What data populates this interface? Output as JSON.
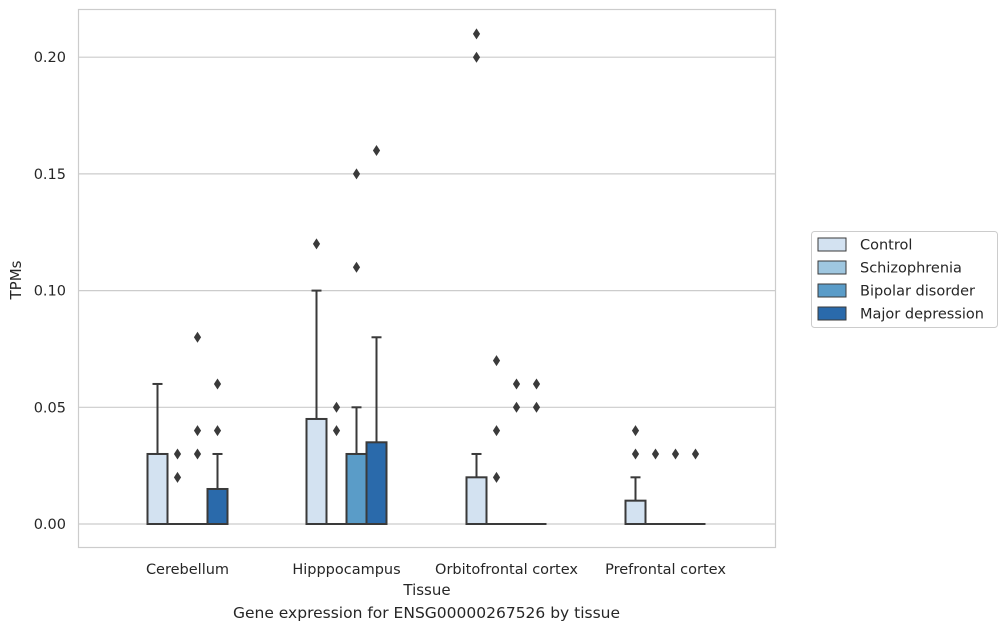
{
  "caption": "Gene expression for ENSG00000267526 by tissue",
  "chart_data": {
    "type": "box",
    "xlabel": "Tissue",
    "ylabel": "TPMs",
    "ylim": [
      -0.01,
      0.221
    ],
    "yticks": [
      0.0,
      0.05,
      0.1,
      0.15,
      0.2
    ],
    "ytick_labels": [
      "0.00",
      "0.05",
      "0.10",
      "0.15",
      "0.20"
    ],
    "grid": "horizontal",
    "legend_position": "right",
    "categories": [
      "Cerebellum",
      "Hipppocampus",
      "Orbitofrontal cortex",
      "Prefrontal cortex"
    ],
    "series": [
      {
        "name": "Control",
        "color": "#d3e2f1",
        "boxes": [
          {
            "q1": 0.0,
            "median": 0.0,
            "q3": 0.03,
            "whisker_low": 0.0,
            "whisker_high": 0.06,
            "outliers": []
          },
          {
            "q1": 0.0,
            "median": 0.0,
            "q3": 0.045,
            "whisker_low": 0.0,
            "whisker_high": 0.1,
            "outliers": [
              0.12
            ]
          },
          {
            "q1": 0.0,
            "median": 0.0,
            "q3": 0.02,
            "whisker_low": 0.0,
            "whisker_high": 0.03,
            "outliers": [
              0.2,
              0.21
            ]
          },
          {
            "q1": 0.0,
            "median": 0.0,
            "q3": 0.01,
            "whisker_low": 0.0,
            "whisker_high": 0.02,
            "outliers": [
              0.03,
              0.04
            ]
          }
        ]
      },
      {
        "name": "Schizophrenia",
        "color": "#9fc7e0",
        "boxes": [
          {
            "q1": 0.0,
            "median": 0.0,
            "q3": 0.0,
            "whisker_low": 0.0,
            "whisker_high": 0.0,
            "outliers": [
              0.02,
              0.03
            ]
          },
          {
            "q1": 0.0,
            "median": 0.0,
            "q3": 0.0,
            "whisker_low": 0.0,
            "whisker_high": 0.0,
            "outliers": [
              0.04,
              0.05
            ]
          },
          {
            "q1": 0.0,
            "median": 0.0,
            "q3": 0.0,
            "whisker_low": 0.0,
            "whisker_high": 0.0,
            "outliers": [
              0.02,
              0.04,
              0.07
            ]
          },
          {
            "q1": 0.0,
            "median": 0.0,
            "q3": 0.0,
            "whisker_low": 0.0,
            "whisker_high": 0.0,
            "outliers": [
              0.03
            ]
          }
        ]
      },
      {
        "name": "Bipolar disorder",
        "color": "#5a9cc8",
        "boxes": [
          {
            "q1": 0.0,
            "median": 0.0,
            "q3": 0.0,
            "whisker_low": 0.0,
            "whisker_high": 0.0,
            "outliers": [
              0.03,
              0.04,
              0.08
            ]
          },
          {
            "q1": 0.0,
            "median": 0.0,
            "q3": 0.03,
            "whisker_low": 0.0,
            "whisker_high": 0.05,
            "outliers": [
              0.11,
              0.15
            ]
          },
          {
            "q1": 0.0,
            "median": 0.0,
            "q3": 0.0,
            "whisker_low": 0.0,
            "whisker_high": 0.0,
            "outliers": [
              0.05,
              0.06
            ]
          },
          {
            "q1": 0.0,
            "median": 0.0,
            "q3": 0.0,
            "whisker_low": 0.0,
            "whisker_high": 0.0,
            "outliers": [
              0.03
            ]
          }
        ]
      },
      {
        "name": "Major depression",
        "color": "#2a6aab",
        "boxes": [
          {
            "q1": 0.0,
            "median": 0.0,
            "q3": 0.015,
            "whisker_low": 0.0,
            "whisker_high": 0.03,
            "outliers": [
              0.04,
              0.06
            ]
          },
          {
            "q1": 0.0,
            "median": 0.0,
            "q3": 0.035,
            "whisker_low": 0.0,
            "whisker_high": 0.08,
            "outliers": [
              0.16
            ]
          },
          {
            "q1": 0.0,
            "median": 0.0,
            "q3": 0.0,
            "whisker_low": 0.0,
            "whisker_high": 0.0,
            "outliers": [
              0.05,
              0.06
            ]
          },
          {
            "q1": 0.0,
            "median": 0.0,
            "q3": 0.0,
            "whisker_low": 0.0,
            "whisker_high": 0.0,
            "outliers": [
              0.03
            ]
          }
        ]
      }
    ]
  }
}
